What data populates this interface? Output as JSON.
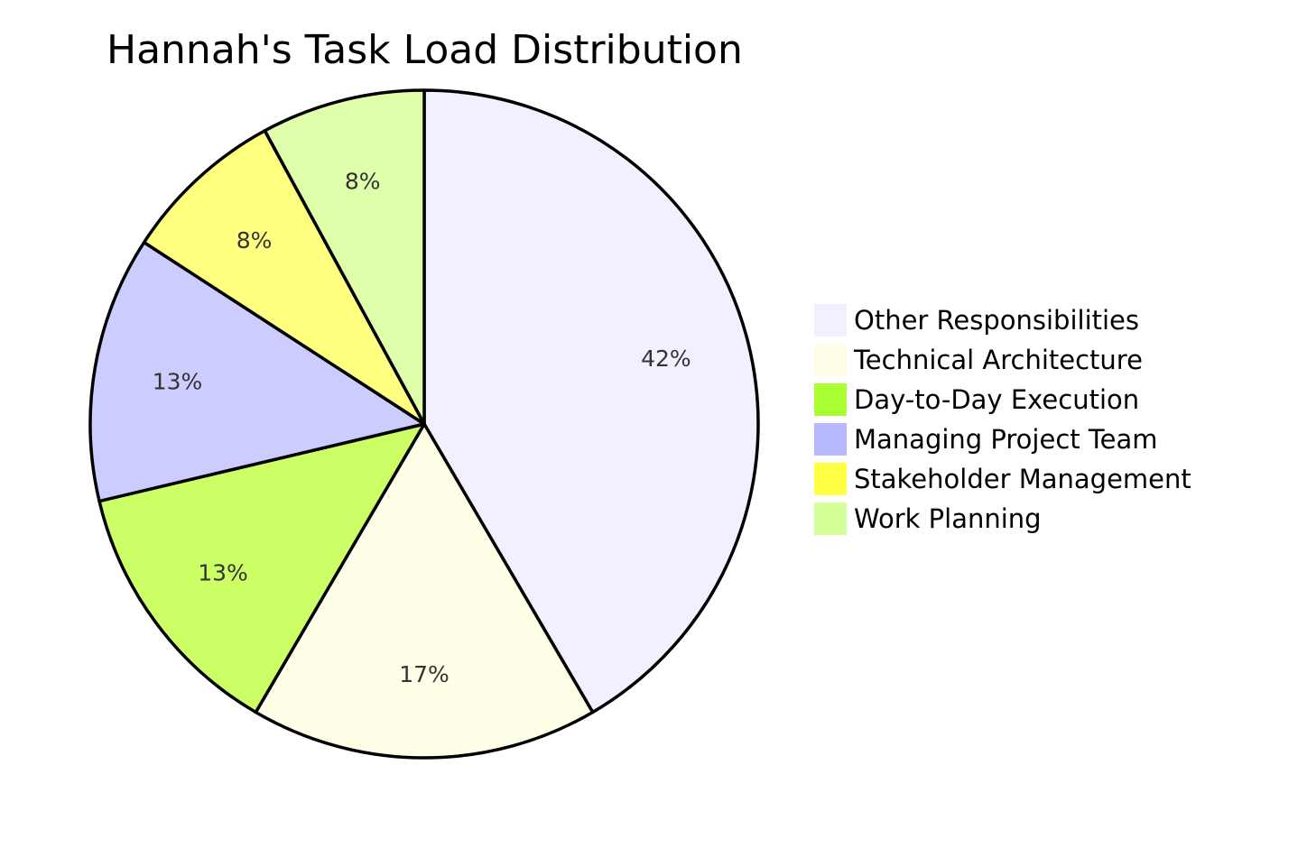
{
  "chart_data": {
    "type": "pie",
    "title": "Hannah's Task Load Distribution",
    "slices": [
      {
        "label": "Other Responsibilities",
        "value": 42,
        "display": "42%",
        "color": "#f0f0ff"
      },
      {
        "label": "Technical Architecture",
        "value": 17,
        "display": "17%",
        "color": "#ffffe8"
      },
      {
        "label": "Day-to-Day Execution",
        "value": 13,
        "display": "13%",
        "color": "#ccff66"
      },
      {
        "label": "Managing Project Team",
        "value": 13,
        "display": "13%",
        "color": "#ccccff"
      },
      {
        "label": "Stakeholder Management",
        "value": 8,
        "display": "8%",
        "color": "#ffff80"
      },
      {
        "label": "Work Planning",
        "value": 8,
        "display": "8%",
        "color": "#e0ffaa"
      }
    ],
    "legend_colors": [
      "#f0f0ff",
      "#ffffe8",
      "#aaff33",
      "#b8b8ff",
      "#ffff44",
      "#d4ff99"
    ],
    "legend_position": "right"
  }
}
